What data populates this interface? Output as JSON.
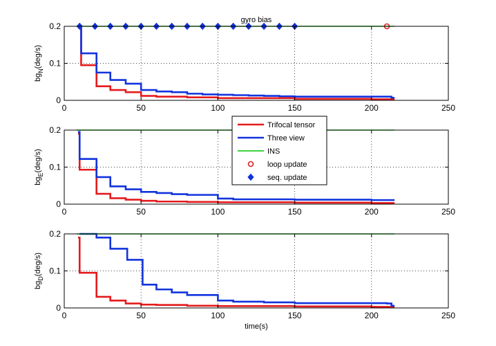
{
  "chart_data": {
    "type": "line",
    "title": "gyro bias",
    "xlabel": "time(s)",
    "xlim": [
      0,
      250
    ],
    "xticks": [
      0,
      50,
      100,
      150,
      200,
      250
    ],
    "grid": true,
    "legend": {
      "placement": "center (between subplots 1 and 2)",
      "entries": [
        "Trifocal tensor",
        "Three view",
        "INS",
        "loop update",
        "seq. update"
      ]
    },
    "colors": {
      "Trifocal tensor": "#e41a1c",
      "Three view": "#1133dd",
      "INS": "#22cc22",
      "loop update": "#dd2222",
      "seq. update": "#1133dd"
    },
    "subplots": [
      {
        "ylabel": {
          "base": "bg",
          "sub": "N",
          "unit": "(deg/s)"
        },
        "ylim": [
          0,
          0.2
        ],
        "yticks": [
          0,
          0.1,
          0.2
        ],
        "series": [
          {
            "name": "Trifocal tensor",
            "style": "step",
            "x": [
              10,
              11,
              20,
              21,
              30,
              40,
              50,
              60,
              80,
              100,
              150,
              200,
              215
            ],
            "y": [
              0.2,
              0.095,
              0.095,
              0.038,
              0.028,
              0.022,
              0.012,
              0.01,
              0.008,
              0.006,
              0.004,
              0.003,
              0.003
            ]
          },
          {
            "name": "Three view",
            "style": "step",
            "x": [
              10,
              11,
              20,
              21,
              30,
              40,
              50,
              60,
              70,
              80,
              90,
              100,
              110,
              120,
              130,
              140,
              150,
              160,
              210,
              213,
              215
            ],
            "y": [
              0.2,
              0.127,
              0.127,
              0.075,
              0.055,
              0.045,
              0.028,
              0.024,
              0.022,
              0.018,
              0.016,
              0.015,
              0.014,
              0.013,
              0.012,
              0.011,
              0.01,
              0.01,
              0.01,
              0.007,
              0.007
            ]
          },
          {
            "name": "INS",
            "style": "line",
            "x": [
              8,
              215
            ],
            "y": [
              0.2,
              0.2
            ]
          },
          {
            "name": "seq. update",
            "style": "markers",
            "x": [
              10,
              20,
              30,
              40,
              50,
              60,
              70,
              80,
              90,
              100,
              110,
              120,
              130,
              140,
              150
            ],
            "y": [
              0.2,
              0.2,
              0.2,
              0.2,
              0.2,
              0.2,
              0.2,
              0.2,
              0.2,
              0.2,
              0.2,
              0.2,
              0.2,
              0.2,
              0.2
            ]
          },
          {
            "name": "loop update",
            "style": "markers",
            "x": [
              210
            ],
            "y": [
              0.2
            ]
          }
        ]
      },
      {
        "ylabel": {
          "base": "bg",
          "sub": "E",
          "unit": "(deg/s)"
        },
        "ylim": [
          0,
          0.2
        ],
        "yticks": [
          0,
          0.1,
          0.2
        ],
        "series": [
          {
            "name": "Trifocal tensor",
            "style": "step",
            "x": [
              9,
              10,
              20,
              21,
              30,
              40,
              50,
              60,
              80,
              100,
              150,
              200,
              215
            ],
            "y": [
              0.19,
              0.093,
              0.093,
              0.028,
              0.016,
              0.012,
              0.009,
              0.007,
              0.006,
              0.005,
              0.004,
              0.003,
              0.003
            ]
          },
          {
            "name": "Three view",
            "style": "step",
            "x": [
              9,
              10,
              20,
              21,
              30,
              40,
              50,
              60,
              70,
              80,
              100,
              110,
              150,
              200,
              215
            ],
            "y": [
              0.195,
              0.122,
              0.122,
              0.073,
              0.048,
              0.04,
              0.033,
              0.03,
              0.027,
              0.025,
              0.015,
              0.013,
              0.012,
              0.011,
              0.011
            ]
          },
          {
            "name": "INS",
            "style": "line",
            "x": [
              8,
              215
            ],
            "y": [
              0.2,
              0.2
            ]
          }
        ]
      },
      {
        "ylabel": {
          "base": "bg",
          "sub": "D",
          "unit": "(deg/s)"
        },
        "ylim": [
          0,
          0.2
        ],
        "yticks": [
          0,
          0.1,
          0.2
        ],
        "series": [
          {
            "name": "Trifocal tensor",
            "style": "step",
            "x": [
              9,
              10,
              20,
              21,
              30,
              40,
              50,
              60,
              80,
              100,
              150,
              200,
              215
            ],
            "y": [
              0.19,
              0.095,
              0.095,
              0.03,
              0.02,
              0.012,
              0.009,
              0.008,
              0.006,
              0.005,
              0.004,
              0.003,
              0.003
            ]
          },
          {
            "name": "Three view",
            "style": "step",
            "x": [
              10,
              20,
              21,
              30,
              40,
              41,
              50,
              51,
              60,
              70,
              80,
              100,
              110,
              130,
              150,
              210,
              213,
              215
            ],
            "y": [
              0.2,
              0.2,
              0.19,
              0.16,
              0.16,
              0.13,
              0.13,
              0.063,
              0.05,
              0.042,
              0.035,
              0.02,
              0.017,
              0.015,
              0.013,
              0.012,
              0.006,
              0.006
            ]
          },
          {
            "name": "INS",
            "style": "line",
            "x": [
              8,
              215
            ],
            "y": [
              0.2,
              0.2
            ]
          }
        ]
      }
    ]
  }
}
